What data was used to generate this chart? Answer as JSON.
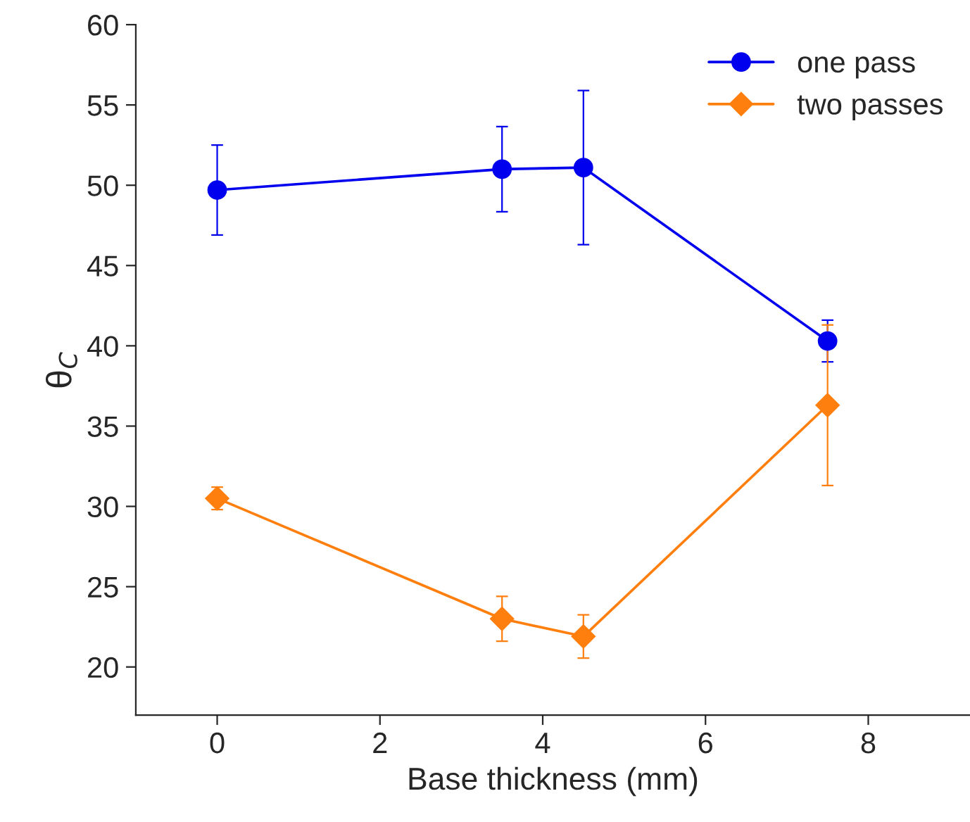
{
  "chart_data": {
    "type": "line",
    "xlabel": "Base thickness (mm)",
    "ylabel": "θ$_{C}$",
    "x": [
      0,
      3.5,
      4.5,
      7.5
    ],
    "series": [
      {
        "name": "one pass",
        "color": "#0000ee",
        "marker": "circle",
        "values": [
          49.7,
          51.0,
          51.1,
          40.3
        ],
        "errors": [
          2.8,
          2.65,
          4.8,
          1.3
        ]
      },
      {
        "name": "two passes",
        "color": "#ff7f0e",
        "marker": "diamond",
        "values": [
          30.5,
          23.0,
          21.9,
          36.3
        ],
        "errors": [
          0.7,
          1.4,
          1.35,
          5.0
        ]
      }
    ],
    "xlim": [
      -1,
      9.25
    ],
    "ylim": [
      17,
      60
    ],
    "xticks": [
      0,
      2,
      4,
      6,
      8
    ],
    "yticks": [
      20,
      25,
      30,
      35,
      40,
      45,
      50,
      55,
      60
    ],
    "grid": false,
    "legend": "top right",
    "line_style": "solid"
  }
}
